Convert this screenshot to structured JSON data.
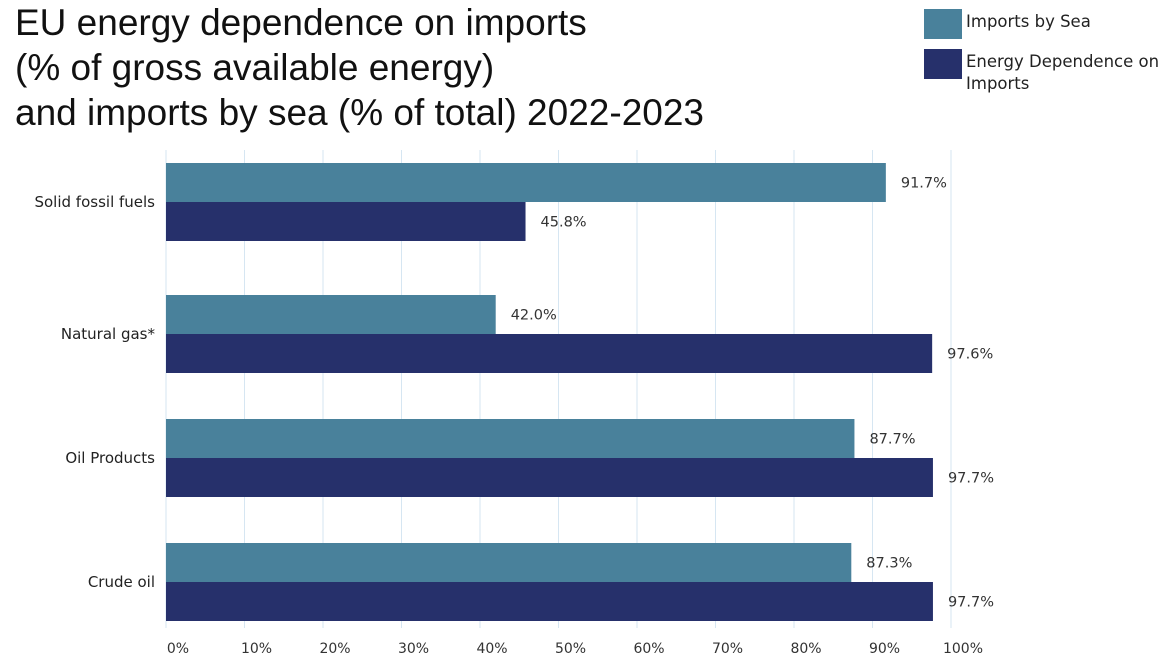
{
  "title_lines": [
    "EU energy dependence on imports",
    "(% of gross available energy)",
    "and imports by sea (% of total) 2022-2023"
  ],
  "legend": [
    {
      "label": "Imports by Sea",
      "color": "#49819b"
    },
    {
      "label": "Energy Dependence on Imports",
      "color": "#26306b"
    }
  ],
  "chart_data": {
    "type": "bar",
    "orientation": "horizontal",
    "title": "EU energy dependence on imports (% of gross available energy) and imports by sea (% of total) 2022-2023",
    "categories": [
      "Solid fossil fuels",
      "Natural gas*",
      "Oil Products",
      "Crude oil"
    ],
    "series": [
      {
        "name": "Imports by Sea",
        "color": "#49819b",
        "values": [
          91.7,
          42.0,
          87.7,
          87.3
        ],
        "labels": [
          "91.7%",
          "42.0%",
          "87.7%",
          "87.3%"
        ]
      },
      {
        "name": "Energy Dependence on Imports",
        "color": "#26306b",
        "values": [
          45.8,
          97.6,
          97.7,
          97.7
        ],
        "labels": [
          "45.8%",
          "97.6%",
          "97.7%",
          "97.7%"
        ]
      }
    ],
    "xlim": [
      0,
      100
    ],
    "xticks": [
      "0%",
      "10%",
      "20%",
      "30%",
      "40%",
      "50%",
      "60%",
      "70%",
      "80%",
      "90%",
      "100%"
    ],
    "xlabel": "",
    "ylabel": "",
    "grid": "vertical",
    "legend_position": "top-right"
  }
}
